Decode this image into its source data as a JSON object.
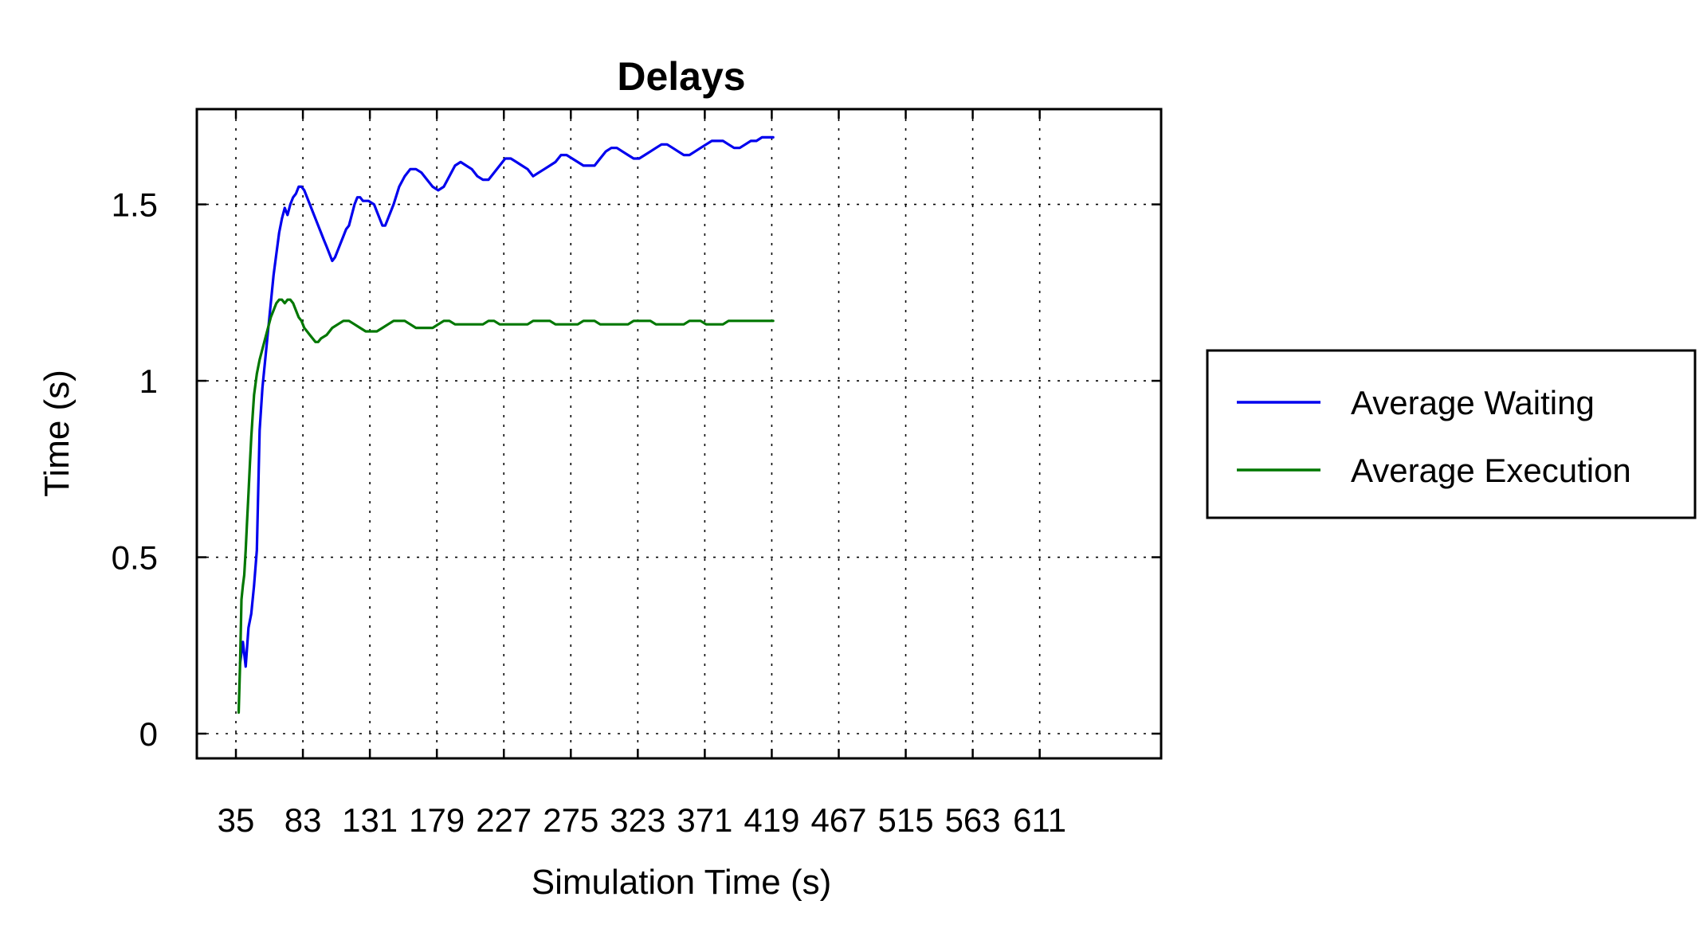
{
  "chart_data": {
    "type": "line",
    "title": "Delays",
    "xlabel": "Simulation Time (s)",
    "ylabel": "Time (s)",
    "xlim": [
      7,
      698
    ],
    "ylim": [
      -0.07,
      1.77
    ],
    "x_ticks": [
      35,
      83,
      131,
      179,
      227,
      275,
      323,
      371,
      419,
      467,
      515,
      563,
      611
    ],
    "x_tick_labels": [
      "35",
      "83",
      "131",
      "179",
      "227",
      "275",
      "323",
      "371",
      "419",
      "467",
      "515",
      "563",
      "611"
    ],
    "y_ticks": [
      0,
      0.5,
      1,
      1.5
    ],
    "y_tick_labels": [
      "0",
      "0.5",
      "1",
      "1.5"
    ],
    "grid": true,
    "legend_position": "outside-right",
    "series": [
      {
        "name": "Average Waiting",
        "color": "#0000ee",
        "points": [
          [
            38,
            0.2
          ],
          [
            40,
            0.26
          ],
          [
            42,
            0.19
          ],
          [
            44,
            0.3
          ],
          [
            46,
            0.34
          ],
          [
            48,
            0.42
          ],
          [
            50,
            0.52
          ],
          [
            52,
            0.86
          ],
          [
            54,
            0.98
          ],
          [
            56,
            1.06
          ],
          [
            58,
            1.14
          ],
          [
            60,
            1.22
          ],
          [
            62,
            1.3
          ],
          [
            64,
            1.36
          ],
          [
            66,
            1.42
          ],
          [
            68,
            1.46
          ],
          [
            70,
            1.49
          ],
          [
            72,
            1.47
          ],
          [
            74,
            1.5
          ],
          [
            76,
            1.52
          ],
          [
            78,
            1.53
          ],
          [
            80,
            1.55
          ],
          [
            82,
            1.55
          ],
          [
            84,
            1.54
          ],
          [
            86,
            1.52
          ],
          [
            88,
            1.5
          ],
          [
            90,
            1.48
          ],
          [
            92,
            1.46
          ],
          [
            94,
            1.44
          ],
          [
            96,
            1.42
          ],
          [
            98,
            1.4
          ],
          [
            100,
            1.38
          ],
          [
            102,
            1.36
          ],
          [
            104,
            1.34
          ],
          [
            106,
            1.35
          ],
          [
            108,
            1.37
          ],
          [
            110,
            1.39
          ],
          [
            112,
            1.41
          ],
          [
            114,
            1.43
          ],
          [
            116,
            1.44
          ],
          [
            118,
            1.47
          ],
          [
            120,
            1.5
          ],
          [
            122,
            1.52
          ],
          [
            124,
            1.52
          ],
          [
            126,
            1.51
          ],
          [
            130,
            1.51
          ],
          [
            134,
            1.5
          ],
          [
            136,
            1.48
          ],
          [
            138,
            1.46
          ],
          [
            140,
            1.44
          ],
          [
            142,
            1.44
          ],
          [
            144,
            1.46
          ],
          [
            148,
            1.5
          ],
          [
            152,
            1.55
          ],
          [
            156,
            1.58
          ],
          [
            160,
            1.6
          ],
          [
            164,
            1.6
          ],
          [
            168,
            1.59
          ],
          [
            172,
            1.57
          ],
          [
            176,
            1.55
          ],
          [
            180,
            1.54
          ],
          [
            184,
            1.55
          ],
          [
            188,
            1.58
          ],
          [
            192,
            1.61
          ],
          [
            196,
            1.62
          ],
          [
            200,
            1.61
          ],
          [
            204,
            1.6
          ],
          [
            208,
            1.58
          ],
          [
            212,
            1.57
          ],
          [
            216,
            1.57
          ],
          [
            220,
            1.59
          ],
          [
            224,
            1.61
          ],
          [
            228,
            1.63
          ],
          [
            232,
            1.63
          ],
          [
            236,
            1.62
          ],
          [
            240,
            1.61
          ],
          [
            244,
            1.6
          ],
          [
            248,
            1.58
          ],
          [
            252,
            1.59
          ],
          [
            256,
            1.6
          ],
          [
            260,
            1.61
          ],
          [
            264,
            1.62
          ],
          [
            268,
            1.64
          ],
          [
            272,
            1.64
          ],
          [
            276,
            1.63
          ],
          [
            280,
            1.62
          ],
          [
            284,
            1.61
          ],
          [
            288,
            1.61
          ],
          [
            292,
            1.61
          ],
          [
            296,
            1.63
          ],
          [
            300,
            1.65
          ],
          [
            304,
            1.66
          ],
          [
            308,
            1.66
          ],
          [
            312,
            1.65
          ],
          [
            316,
            1.64
          ],
          [
            320,
            1.63
          ],
          [
            324,
            1.63
          ],
          [
            328,
            1.64
          ],
          [
            332,
            1.65
          ],
          [
            336,
            1.66
          ],
          [
            340,
            1.67
          ],
          [
            344,
            1.67
          ],
          [
            348,
            1.66
          ],
          [
            352,
            1.65
          ],
          [
            356,
            1.64
          ],
          [
            360,
            1.64
          ],
          [
            364,
            1.65
          ],
          [
            368,
            1.66
          ],
          [
            372,
            1.67
          ],
          [
            376,
            1.68
          ],
          [
            380,
            1.68
          ],
          [
            384,
            1.68
          ],
          [
            388,
            1.67
          ],
          [
            392,
            1.66
          ],
          [
            396,
            1.66
          ],
          [
            400,
            1.67
          ],
          [
            404,
            1.68
          ],
          [
            408,
            1.68
          ],
          [
            412,
            1.69
          ],
          [
            416,
            1.69
          ],
          [
            420,
            1.69
          ]
        ]
      },
      {
        "name": "Average Execution",
        "color": "#007700",
        "points": [
          [
            37,
            0.06
          ],
          [
            38,
            0.2
          ],
          [
            39,
            0.38
          ],
          [
            40,
            0.42
          ],
          [
            41,
            0.45
          ],
          [
            42,
            0.52
          ],
          [
            43,
            0.6
          ],
          [
            44,
            0.68
          ],
          [
            45,
            0.76
          ],
          [
            46,
            0.84
          ],
          [
            47,
            0.9
          ],
          [
            48,
            0.96
          ],
          [
            50,
            1.02
          ],
          [
            52,
            1.06
          ],
          [
            54,
            1.09
          ],
          [
            56,
            1.12
          ],
          [
            58,
            1.15
          ],
          [
            60,
            1.18
          ],
          [
            62,
            1.2
          ],
          [
            64,
            1.22
          ],
          [
            66,
            1.23
          ],
          [
            68,
            1.23
          ],
          [
            70,
            1.22
          ],
          [
            72,
            1.23
          ],
          [
            74,
            1.23
          ],
          [
            76,
            1.22
          ],
          [
            78,
            1.2
          ],
          [
            80,
            1.18
          ],
          [
            82,
            1.17
          ],
          [
            84,
            1.15
          ],
          [
            86,
            1.14
          ],
          [
            88,
            1.13
          ],
          [
            90,
            1.12
          ],
          [
            92,
            1.11
          ],
          [
            94,
            1.11
          ],
          [
            96,
            1.12
          ],
          [
            100,
            1.13
          ],
          [
            104,
            1.15
          ],
          [
            108,
            1.16
          ],
          [
            112,
            1.17
          ],
          [
            116,
            1.17
          ],
          [
            120,
            1.16
          ],
          [
            124,
            1.15
          ],
          [
            128,
            1.14
          ],
          [
            132,
            1.14
          ],
          [
            136,
            1.14
          ],
          [
            140,
            1.15
          ],
          [
            144,
            1.16
          ],
          [
            148,
            1.17
          ],
          [
            152,
            1.17
          ],
          [
            156,
            1.17
          ],
          [
            160,
            1.16
          ],
          [
            164,
            1.15
          ],
          [
            168,
            1.15
          ],
          [
            172,
            1.15
          ],
          [
            176,
            1.15
          ],
          [
            180,
            1.16
          ],
          [
            184,
            1.17
          ],
          [
            188,
            1.17
          ],
          [
            192,
            1.16
          ],
          [
            196,
            1.16
          ],
          [
            200,
            1.16
          ],
          [
            204,
            1.16
          ],
          [
            208,
            1.16
          ],
          [
            212,
            1.16
          ],
          [
            216,
            1.17
          ],
          [
            220,
            1.17
          ],
          [
            224,
            1.16
          ],
          [
            228,
            1.16
          ],
          [
            232,
            1.16
          ],
          [
            236,
            1.16
          ],
          [
            240,
            1.16
          ],
          [
            244,
            1.16
          ],
          [
            248,
            1.17
          ],
          [
            252,
            1.17
          ],
          [
            256,
            1.17
          ],
          [
            260,
            1.17
          ],
          [
            264,
            1.16
          ],
          [
            268,
            1.16
          ],
          [
            272,
            1.16
          ],
          [
            276,
            1.16
          ],
          [
            280,
            1.16
          ],
          [
            284,
            1.17
          ],
          [
            288,
            1.17
          ],
          [
            292,
            1.17
          ],
          [
            296,
            1.16
          ],
          [
            300,
            1.16
          ],
          [
            304,
            1.16
          ],
          [
            308,
            1.16
          ],
          [
            312,
            1.16
          ],
          [
            316,
            1.16
          ],
          [
            320,
            1.17
          ],
          [
            324,
            1.17
          ],
          [
            328,
            1.17
          ],
          [
            332,
            1.17
          ],
          [
            336,
            1.16
          ],
          [
            340,
            1.16
          ],
          [
            344,
            1.16
          ],
          [
            348,
            1.16
          ],
          [
            352,
            1.16
          ],
          [
            356,
            1.16
          ],
          [
            360,
            1.17
          ],
          [
            364,
            1.17
          ],
          [
            368,
            1.17
          ],
          [
            372,
            1.16
          ],
          [
            376,
            1.16
          ],
          [
            380,
            1.16
          ],
          [
            384,
            1.16
          ],
          [
            388,
            1.17
          ],
          [
            392,
            1.17
          ],
          [
            396,
            1.17
          ],
          [
            400,
            1.17
          ],
          [
            404,
            1.17
          ],
          [
            408,
            1.17
          ],
          [
            412,
            1.17
          ],
          [
            416,
            1.17
          ],
          [
            420,
            1.17
          ]
        ]
      }
    ]
  }
}
